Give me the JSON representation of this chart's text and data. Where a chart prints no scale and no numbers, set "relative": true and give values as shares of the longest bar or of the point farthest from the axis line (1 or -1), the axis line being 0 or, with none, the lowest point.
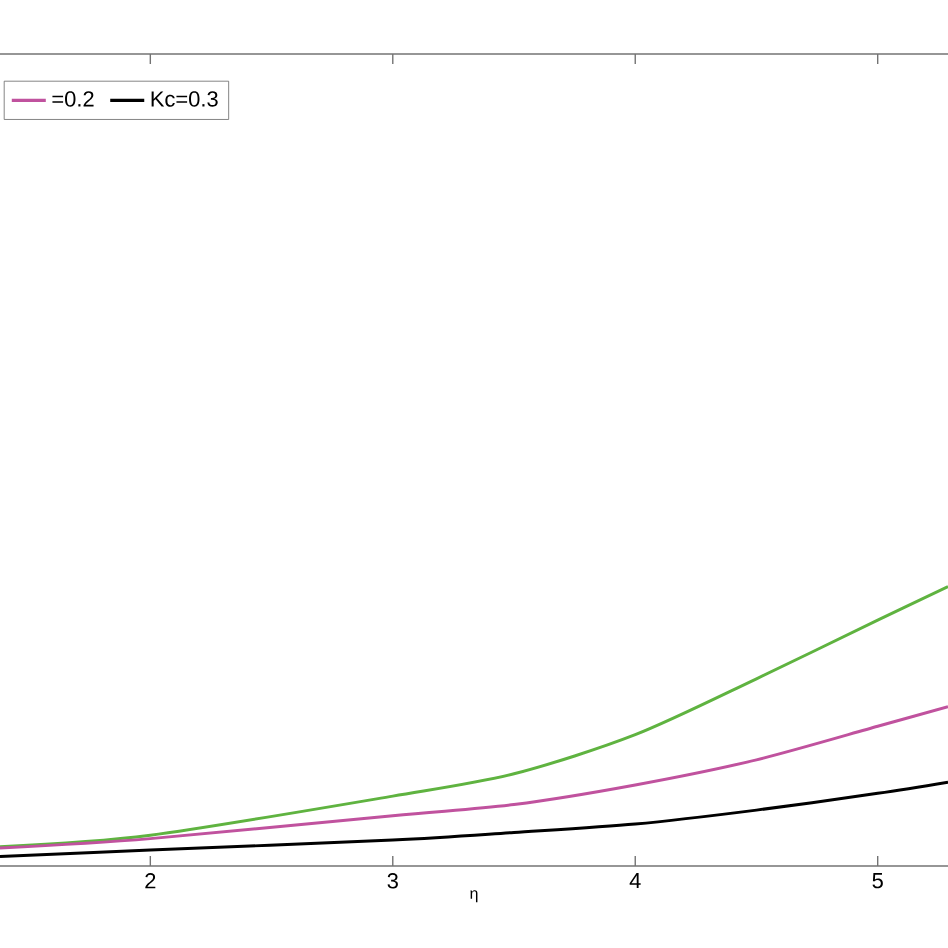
{
  "chart_data": {
    "type": "line",
    "relative": true,
    "xlabel": "η",
    "x": [
      1.38,
      2,
      3,
      3.5,
      4,
      4.5,
      5,
      5.29
    ],
    "xlim": [
      1.38,
      5.29
    ],
    "xticks": [
      2,
      3,
      4,
      5
    ],
    "legend": "top left",
    "marker": "none",
    "line_style": "solid",
    "grid": false,
    "series": [
      {
        "color": "#5fb340",
        "values": [
          0.069,
          0.11,
          0.25,
          0.33,
          0.47,
          0.67,
          0.88,
          1
        ]
      },
      {
        "name": "=0.2",
        "color": "#c0529e",
        "values": [
          0.064,
          0.098,
          0.18,
          0.22,
          0.29,
          0.38,
          0.5,
          0.57
        ]
      },
      {
        "name": "Kc=0.3",
        "color": "#000000",
        "values": [
          0.034,
          0.057,
          0.093,
          0.12,
          0.15,
          0.2,
          0.26,
          0.3
        ]
      }
    ]
  }
}
